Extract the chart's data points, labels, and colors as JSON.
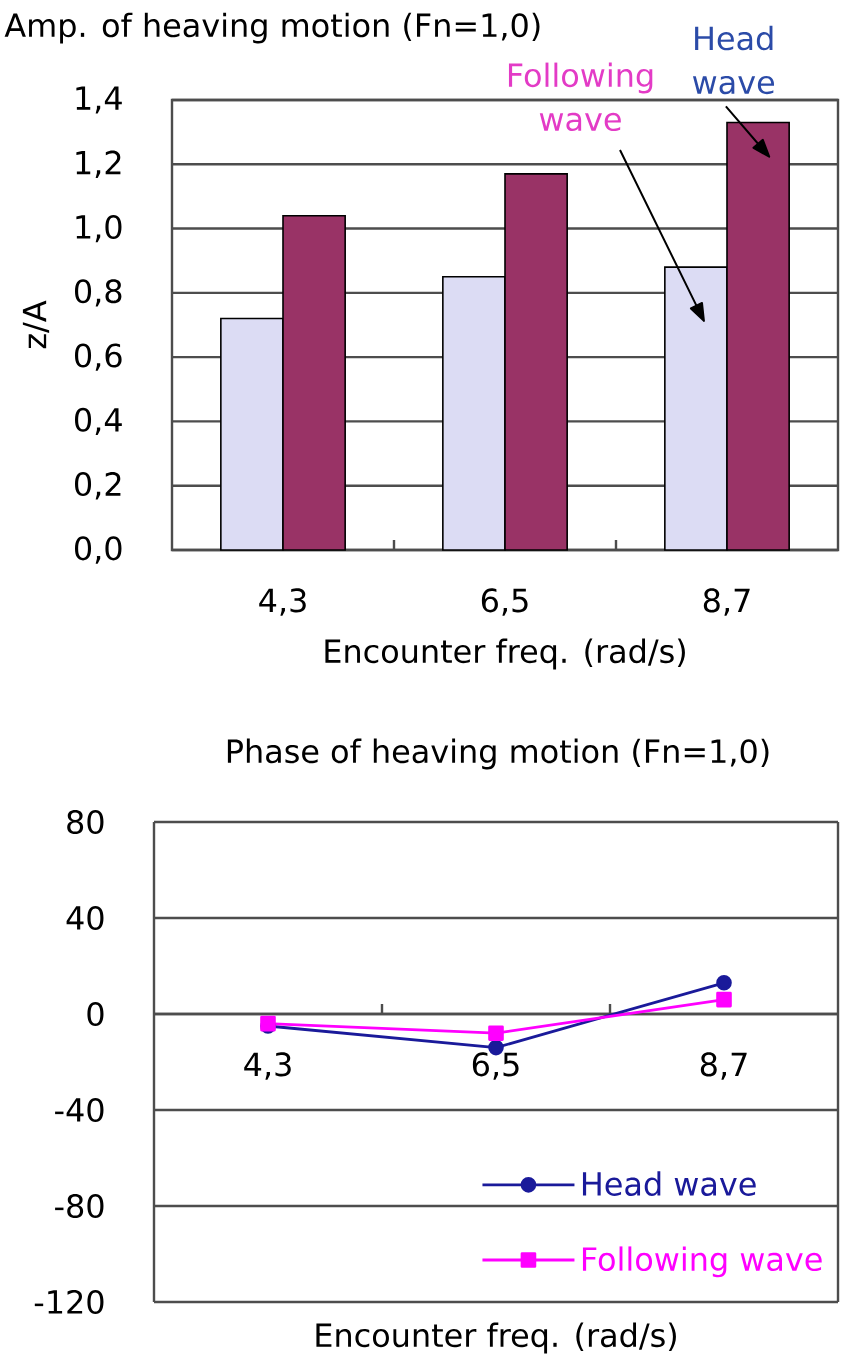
{
  "chart_data": [
    {
      "type": "bar",
      "title": "Amp. of heaving motion (Fn=1,0)",
      "xlabel": "Encounter freq. (rad/s)",
      "ylabel": "z/A",
      "categories": [
        "4,3",
        "6,5",
        "8,7"
      ],
      "series": [
        {
          "name": "Following wave",
          "color": "#dcdcf4",
          "values": [
            0.72,
            0.85,
            0.88
          ]
        },
        {
          "name": "Head wave",
          "color": "#993366",
          "values": [
            1.04,
            1.17,
            1.33
          ]
        }
      ],
      "ylim": [
        0,
        1.4
      ],
      "yticks": [
        {
          "value": 0,
          "label": "0,0"
        },
        {
          "value": 0.2,
          "label": "0,2"
        },
        {
          "value": 0.4,
          "label": "0,4"
        },
        {
          "value": 0.6,
          "label": "0,6"
        },
        {
          "value": 0.8,
          "label": "0,8"
        },
        {
          "value": 1.0,
          "label": "1,0"
        },
        {
          "value": 1.2,
          "label": "1,2"
        },
        {
          "value": 1.4,
          "label": "1,4"
        }
      ],
      "grid": "y"
    },
    {
      "type": "line",
      "title": "Phase of heaving motion (Fn=1,0)",
      "xlabel": "Encounter freq. (rad/s)",
      "categories": [
        "4,3",
        "6,5",
        "8,7"
      ],
      "series": [
        {
          "name": "Head wave",
          "color": "#1a1a9a",
          "marker": "circle",
          "values": [
            -5,
            -14,
            13
          ]
        },
        {
          "name": "Following wave",
          "color": "#ff00ff",
          "marker": "square",
          "values": [
            -4,
            -8,
            6
          ]
        }
      ],
      "ylim": [
        -120,
        80
      ],
      "yticks": [
        -120,
        -80,
        -40,
        0,
        40,
        80
      ],
      "grid": "y",
      "legend": "bottom right"
    }
  ]
}
